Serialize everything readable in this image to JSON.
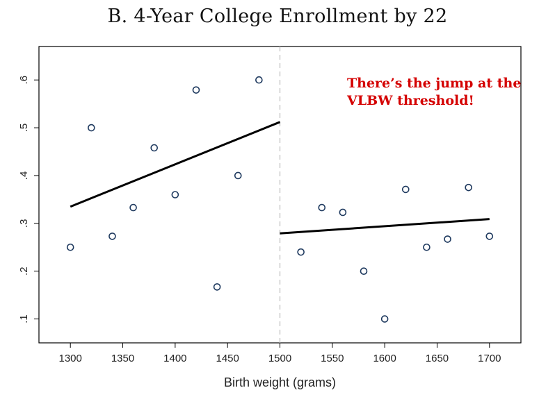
{
  "chart_data": {
    "type": "scatter",
    "title": "B. 4-Year College Enrollment by 22",
    "xlabel": "Birth weight (grams)",
    "ylabel": "",
    "xlim": [
      1270,
      1730
    ],
    "ylim": [
      0.05,
      0.67
    ],
    "x_ticks": [
      1300,
      1350,
      1400,
      1450,
      1500,
      1550,
      1600,
      1650,
      1700
    ],
    "y_ticks": [
      0.1,
      0.2,
      0.3,
      0.4,
      0.5,
      0.6
    ],
    "y_tick_labels": [
      ".1",
      ".2",
      ".3",
      ".4",
      ".5",
      ".6"
    ],
    "threshold": 1500,
    "grid": false,
    "legend": "none",
    "colors": {
      "marker": "#1f3a5f",
      "fit": "#000000",
      "annotation": "#d40000",
      "threshold_line": "#bbbbbb"
    },
    "points": [
      {
        "x": 1300,
        "y": 0.25
      },
      {
        "x": 1320,
        "y": 0.5
      },
      {
        "x": 1340,
        "y": 0.273
      },
      {
        "x": 1360,
        "y": 0.333
      },
      {
        "x": 1380,
        "y": 0.458
      },
      {
        "x": 1400,
        "y": 0.36
      },
      {
        "x": 1420,
        "y": 0.579
      },
      {
        "x": 1440,
        "y": 0.167
      },
      {
        "x": 1460,
        "y": 0.4
      },
      {
        "x": 1480,
        "y": 0.6
      },
      {
        "x": 1520,
        "y": 0.24
      },
      {
        "x": 1540,
        "y": 0.333
      },
      {
        "x": 1560,
        "y": 0.323
      },
      {
        "x": 1580,
        "y": 0.2
      },
      {
        "x": 1600,
        "y": 0.1
      },
      {
        "x": 1620,
        "y": 0.371
      },
      {
        "x": 1640,
        "y": 0.25
      },
      {
        "x": 1660,
        "y": 0.267
      },
      {
        "x": 1680,
        "y": 0.375
      },
      {
        "x": 1700,
        "y": 0.273
      }
    ],
    "fit_lines": [
      {
        "x": [
          1300,
          1500
        ],
        "y": [
          0.335,
          0.512
        ]
      },
      {
        "x": [
          1500,
          1700
        ],
        "y": [
          0.279,
          0.309
        ]
      }
    ],
    "annotation": [
      "There’s the jump at the",
      "VLBW threshold!"
    ]
  }
}
